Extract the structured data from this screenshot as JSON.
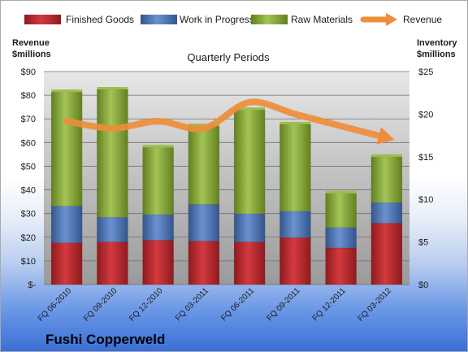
{
  "chart_data": {
    "type": "bar",
    "stacked": true,
    "title": "Quarterly Periods",
    "company": "Fushi Copperweld",
    "categories": [
      "FQ 06-2010",
      "FQ 09-2010",
      "FQ 12-2010",
      "FQ 03-2011",
      "FQ 06-2011",
      "FQ 09-2011",
      "FQ 12-2011",
      "FQ 03-2012"
    ],
    "left_axis": {
      "label_line1": "Revenue",
      "label_line2": "$millions",
      "min": 0,
      "max": 90,
      "step": 10,
      "tick_labels": [
        "$-",
        "$10",
        "$20",
        "$30",
        "$40",
        "$50",
        "$60",
        "$70",
        "$80",
        "$90"
      ]
    },
    "right_axis": {
      "label_line1": "Inventory",
      "label_line2": "$millions",
      "min": 0,
      "max": 25,
      "step": 5,
      "tick_labels": [
        "$0",
        "$5",
        "$10",
        "$15",
        "$20",
        "$25"
      ]
    },
    "series": [
      {
        "name": "Finished Goods",
        "axis": "right",
        "color": "#c0262d",
        "values": [
          4.9,
          5.0,
          5.2,
          5.1,
          5.0,
          5.5,
          4.3,
          7.2
        ]
      },
      {
        "name": "Work in Progress",
        "axis": "right",
        "color": "#4a74b8",
        "values": [
          4.3,
          2.9,
          3.0,
          4.3,
          3.3,
          3.1,
          2.4,
          2.4
        ]
      },
      {
        "name": "Raw Materials",
        "axis": "right",
        "color": "#8fb23b",
        "values": [
          13.4,
          15.0,
          7.9,
          9.2,
          12.2,
          10.2,
          4.0,
          5.4
        ]
      },
      {
        "name": "Revenue",
        "axis": "left",
        "type": "line",
        "color": "#ee8d3a",
        "values": [
          69,
          66,
          69,
          66,
          77,
          72,
          67,
          62
        ]
      }
    ],
    "legend_position": "top",
    "grid": true
  }
}
